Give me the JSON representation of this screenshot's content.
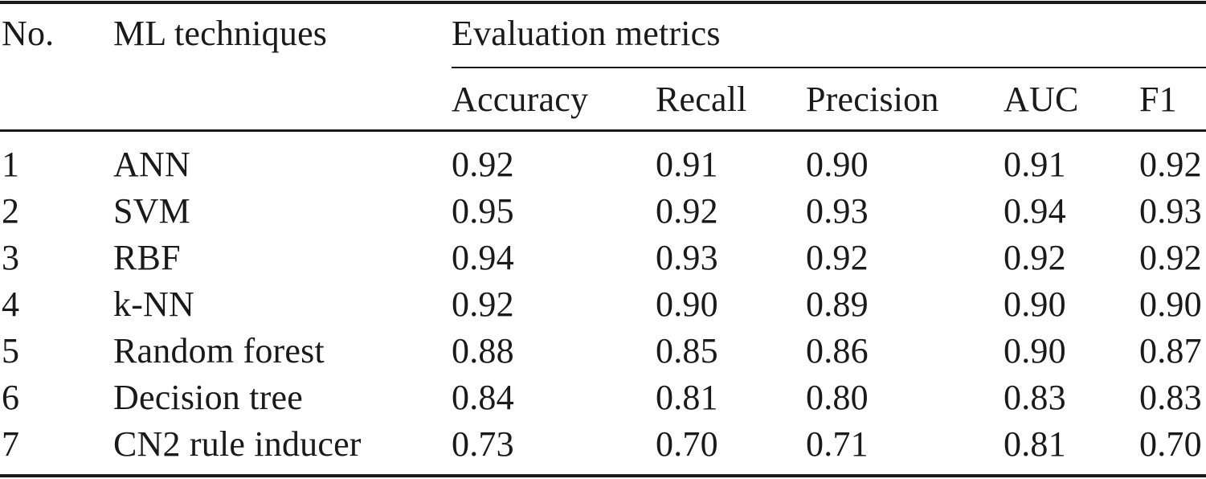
{
  "table": {
    "headers": {
      "no": "No.",
      "technique": "ML techniques",
      "group": "Evaluation metrics",
      "metrics": [
        "Accuracy",
        "Recall",
        "Precision",
        "AUC",
        "F1"
      ]
    },
    "rows": [
      {
        "no": "1",
        "technique": "ANN",
        "accuracy": "0.92",
        "recall": "0.91",
        "precision": "0.90",
        "auc": "0.91",
        "f1": "0.92"
      },
      {
        "no": "2",
        "technique": "SVM",
        "accuracy": "0.95",
        "recall": "0.92",
        "precision": "0.93",
        "auc": "0.94",
        "f1": "0.93"
      },
      {
        "no": "3",
        "technique": "RBF",
        "accuracy": "0.94",
        "recall": "0.93",
        "precision": "0.92",
        "auc": "0.92",
        "f1": "0.92"
      },
      {
        "no": "4",
        "technique": "k-NN",
        "accuracy": "0.92",
        "recall": "0.90",
        "precision": "0.89",
        "auc": "0.90",
        "f1": "0.90"
      },
      {
        "no": "5",
        "technique": "Random forest",
        "accuracy": "0.88",
        "recall": "0.85",
        "precision": "0.86",
        "auc": "0.90",
        "f1": "0.87"
      },
      {
        "no": "6",
        "technique": "Decision tree",
        "accuracy": "0.84",
        "recall": "0.81",
        "precision": "0.80",
        "auc": "0.83",
        "f1": "0.83"
      },
      {
        "no": "7",
        "technique": "CN2 rule inducer",
        "accuracy": "0.73",
        "recall": "0.70",
        "precision": "0.71",
        "auc": "0.81",
        "f1": "0.70"
      }
    ]
  }
}
